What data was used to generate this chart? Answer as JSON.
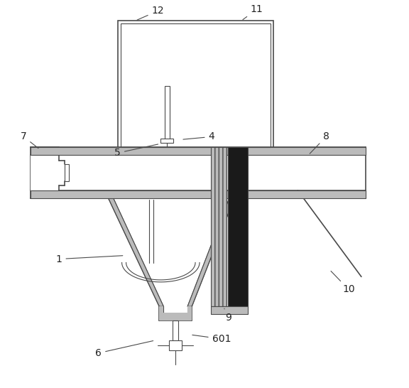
{
  "bg_color": "#ffffff",
  "line_color": "#4a4a4a",
  "dark_fill": "#1a1a1a",
  "gray_fill": "#999999",
  "light_fill": "#e8e8e8",
  "hatch_fill": "#bbbbbb",
  "lw_thin": 0.8,
  "lw_main": 1.2,
  "lw_thick": 1.8,
  "label_fs": 10,
  "label_color": "#222222"
}
